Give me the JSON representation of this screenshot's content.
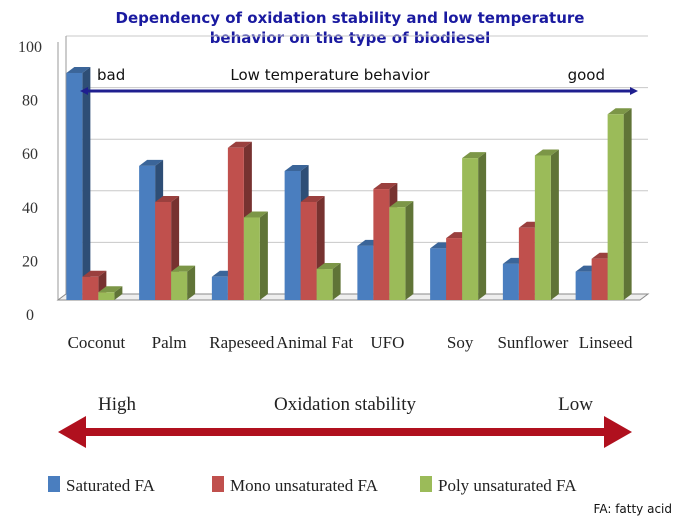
{
  "colors": {
    "saturated": "#4a7ebf",
    "mono": "#c0504d",
    "poly": "#9bbb59",
    "low_temp_arrow": "#1f1f8f",
    "oxidation_arrow": "#b0101e"
  },
  "chart_data": {
    "type": "bar",
    "title": [
      "Dependency of oxidation stability and low temperature",
      "behavior on the type of biodiesel"
    ],
    "categories": [
      "Coconut",
      "Palm",
      "Rapeseed",
      "Animal Fat",
      "UFO",
      "Soy",
      "Sunflower",
      "Linseed"
    ],
    "series": [
      {
        "name": "Saturated FA",
        "values": [
          88,
          52,
          9,
          50,
          21,
          20,
          14,
          11
        ]
      },
      {
        "name": "Mono unsaturated FA",
        "values": [
          9,
          38,
          59,
          38,
          43,
          24,
          28,
          16
        ]
      },
      {
        "name": "Poly unsaturated FA",
        "values": [
          3,
          11,
          32,
          12,
          36,
          55,
          56,
          72
        ]
      }
    ],
    "ylim": [
      0,
      100
    ],
    "yticks": [
      "0",
      "20",
      "40",
      "60",
      "80",
      "100"
    ],
    "grid": true,
    "legend_position": "bottom"
  },
  "annotations": {
    "low_temp_label": "Low temperature behavior",
    "low_temp_left": "bad",
    "low_temp_right": "good",
    "oxidation_label": "Oxidation stability",
    "oxidation_left": "High",
    "oxidation_right": "Low"
  },
  "footnote": "FA: fatty acid"
}
